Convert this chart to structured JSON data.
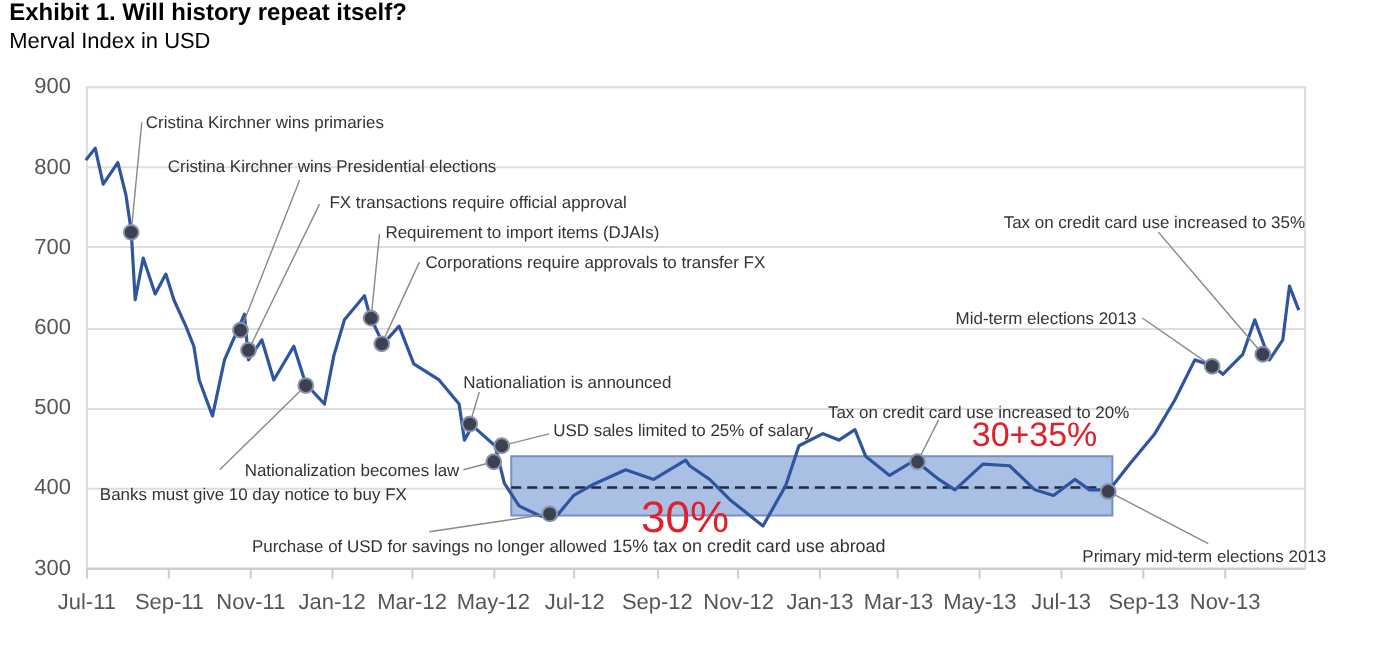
{
  "chart_data": {
    "type": "line",
    "title": "Exhibit 1. Will history repeat itself?",
    "subtitle": "Merval Index in USD",
    "x": [
      "2011-07-01",
      "2011-07-08",
      "2011-07-14",
      "2011-07-25",
      "2011-07-31",
      "2011-08-04",
      "2011-08-07",
      "2011-08-13",
      "2011-08-22",
      "2011-08-30",
      "2011-09-05",
      "2011-09-14",
      "2011-09-20",
      "2011-09-24",
      "2011-10-04",
      "2011-10-13",
      "2011-10-28",
      "2011-10-31",
      "2011-11-10",
      "2011-11-19",
      "2011-12-04",
      "2011-12-13",
      "2011-12-27",
      "2012-01-03",
      "2012-01-11",
      "2012-01-26",
      "2012-01-30",
      "2012-02-09",
      "2012-02-21",
      "2012-03-03",
      "2012-03-22",
      "2012-04-06",
      "2012-04-10",
      "2012-04-16",
      "2012-05-03",
      "2012-05-10",
      "2012-05-21",
      "2012-06-05",
      "2012-06-16",
      "2012-07-01",
      "2012-07-16",
      "2012-08-09",
      "2012-08-30",
      "2012-09-23",
      "2012-09-26",
      "2012-10-11",
      "2012-10-26",
      "2012-11-20",
      "2012-12-07",
      "2012-12-17",
      "2013-01-04",
      "2013-01-16",
      "2013-01-28",
      "2013-02-05",
      "2013-02-23",
      "2013-03-14",
      "2013-04-01",
      "2013-04-13",
      "2013-05-04",
      "2013-05-24",
      "2013-06-12",
      "2013-06-26",
      "2013-07-12",
      "2013-07-23",
      "2013-08-07",
      "2013-08-22",
      "2013-09-10",
      "2013-09-25",
      "2013-10-10",
      "2013-10-24",
      "2013-10-31",
      "2013-11-15",
      "2013-11-24",
      "2013-12-05",
      "2013-12-15",
      "2013-12-20",
      "2013-12-27"
    ],
    "series": [
      {
        "color": "#2f55a0",
        "values": [
          808,
          823,
          778,
          805,
          765,
          720,
          634,
          686,
          641,
          666,
          634,
          601,
          576,
          534,
          489,
          559,
          616,
          559,
          584,
          534,
          576,
          529,
          504,
          564,
          609,
          639,
          614,
          579,
          601,
          554,
          534,
          504,
          459,
          477,
          452,
          405,
          377,
          365,
          360,
          390,
          404,
          422,
          410,
          434,
          427,
          410,
          385,
          352,
          402,
          452,
          467,
          459,
          472,
          439,
          415,
          434,
          410,
          397,
          429,
          427,
          397,
          390,
          410,
          397,
          397,
          429,
          467,
          509,
          559,
          551,
          541,
          566,
          609,
          559,
          584,
          651,
          621
        ]
      }
    ],
    "xlim": [
      "2011-07-01",
      "2013-12-31"
    ],
    "xticks": [
      {
        "value": "2011-07-01",
        "label": "Jul-11"
      },
      {
        "value": "2011-09-01",
        "label": "Sep-11"
      },
      {
        "value": "2011-11-01",
        "label": "Nov-11"
      },
      {
        "value": "2012-01-01",
        "label": "Jan-12"
      },
      {
        "value": "2012-03-01",
        "label": "Mar-12"
      },
      {
        "value": "2012-05-01",
        "label": "May-12"
      },
      {
        "value": "2012-07-01",
        "label": "Jul-12"
      },
      {
        "value": "2012-09-01",
        "label": "Sep-12"
      },
      {
        "value": "2012-11-01",
        "label": "Nov-12"
      },
      {
        "value": "2013-01-01",
        "label": "Jan-13"
      },
      {
        "value": "2013-03-01",
        "label": "Mar-13"
      },
      {
        "value": "2013-05-01",
        "label": "May-13"
      },
      {
        "value": "2013-07-01",
        "label": "Jul-13"
      },
      {
        "value": "2013-09-01",
        "label": "Sep-13"
      },
      {
        "value": "2013-11-01",
        "label": "Nov-13"
      }
    ],
    "ylim": [
      300,
      900
    ],
    "yticks": [
      300,
      400,
      500,
      600,
      700,
      800,
      900
    ],
    "grid": "y",
    "legend": false,
    "marker": "none",
    "line_style": "solid",
    "bands": [
      {
        "axis": "y",
        "from": 365,
        "to": 439,
        "color": "#8eaadb"
      }
    ],
    "ref_lines": [
      {
        "axis": "y",
        "value": 400,
        "line_style": "dashed",
        "color": "#1f2a44"
      }
    ],
    "annotations": [
      {
        "text": "Cristina Kirchner wins primaries",
        "x": "2011-08-04",
        "y": 718
      },
      {
        "text": "Cristina Kirchner wins Presidential elections",
        "x": "2011-10-25",
        "y": 596
      },
      {
        "text": "FX transactions require official approval",
        "x": "2011-10-31",
        "y": 571
      },
      {
        "text": "Requirement to import items (DJAIs)",
        "x": "2012-01-31",
        "y": 611
      },
      {
        "text": "Corporations require approvals to transfer FX",
        "x": "2012-02-08",
        "y": 579
      },
      {
        "text": "Nationaliation is announced",
        "x": "2012-04-14",
        "y": 479
      },
      {
        "text": "USD sales limited to 25% of salary",
        "x": "2012-05-08",
        "y": 452
      },
      {
        "text": "Nationalization becomes law",
        "x": "2012-05-02",
        "y": 432
      },
      {
        "text": "Banks must give 10 day notice to buy FX",
        "x": "2011-12-13",
        "y": 527
      },
      {
        "text": "Purchase of USD for savings no longer allowed",
        "x": "2012-06-13",
        "y": 367
      },
      {
        "text": "Tax on credit card use increased to 20%",
        "x": "2013-03-16",
        "y": 432
      },
      {
        "text": "Primary mid-term elections 2013",
        "x": "2013-08-06",
        "y": 395
      },
      {
        "text": "Mid-term elections 2013",
        "x": "2013-10-23",
        "y": 551
      },
      {
        "text": "Tax on credit card use increased to 35%",
        "x": "2013-11-30",
        "y": 566
      },
      "15% tax on credit card use abroad",
      "30%",
      "30+35%"
    ]
  }
}
